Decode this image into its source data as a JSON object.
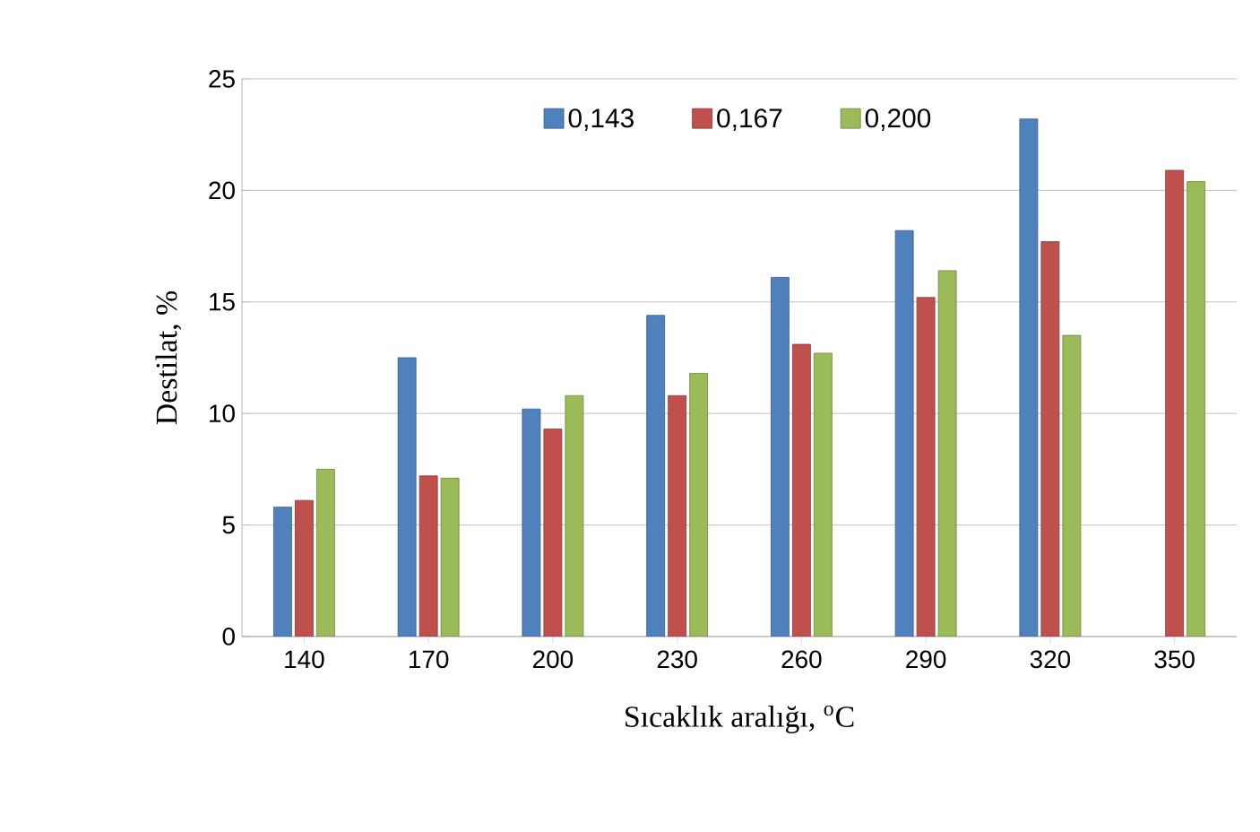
{
  "chart_data": {
    "type": "bar",
    "xlabel": "Sıcaklık aralığı, $^{o}$C",
    "ylabel": "Destilat, %",
    "categories": [
      "140",
      "170",
      "200",
      "230",
      "260",
      "290",
      "320",
      "350"
    ],
    "series": [
      {
        "name": "0,143",
        "color": "#4f81bd",
        "values": [
          5.8,
          12.5,
          10.2,
          14.4,
          16.1,
          18.2,
          23.2,
          null
        ]
      },
      {
        "name": "0,167",
        "color": "#c0504d",
        "values": [
          6.1,
          7.2,
          9.3,
          10.8,
          13.1,
          15.2,
          17.7,
          20.9
        ]
      },
      {
        "name": "0,200",
        "color": "#9bbb59",
        "values": [
          7.5,
          7.1,
          10.8,
          11.8,
          12.7,
          16.4,
          13.5,
          20.4
        ]
      }
    ],
    "ylim": [
      0,
      25
    ],
    "yticks": [
      0,
      5,
      10,
      15,
      20,
      25
    ],
    "grid": "y",
    "legend": "top"
  }
}
